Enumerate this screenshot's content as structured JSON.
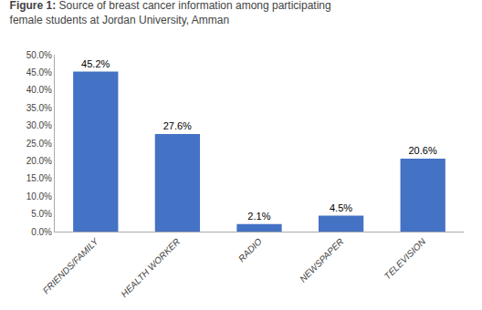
{
  "chart_data": {
    "type": "bar",
    "title": "Figure 1: Source of breast cancer information among participating\nfemale students at Jordan University, Amman",
    "categories": [
      "FRIENDS/FAMILY",
      "HEALTH WORKER",
      "RADIO",
      "NEWSPAPER",
      "TELEVISION"
    ],
    "values": [
      45.2,
      27.6,
      2.1,
      4.5,
      20.6
    ],
    "value_labels": [
      "45.2%",
      "27.6%",
      "2.1%",
      "4.5%",
      "20.6%"
    ],
    "data_labels": true,
    "color": "#4472C4",
    "ylim": [
      0,
      50
    ],
    "yticks": [
      {
        "value": 0,
        "label": "0.0%"
      },
      {
        "value": 5,
        "label": "5.0%"
      },
      {
        "value": 10,
        "label": "10.0%"
      },
      {
        "value": 15,
        "label": "15.0%"
      },
      {
        "value": 20,
        "label": "20.0%"
      },
      {
        "value": 25,
        "label": "25.0%"
      },
      {
        "value": 30,
        "label": "30.0%"
      },
      {
        "value": 35,
        "label": "35.0%"
      },
      {
        "value": 40,
        "label": "40.0%"
      },
      {
        "value": 45,
        "label": "45.0%"
      },
      {
        "value": 50,
        "label": "50.0%"
      }
    ],
    "grid": false
  }
}
